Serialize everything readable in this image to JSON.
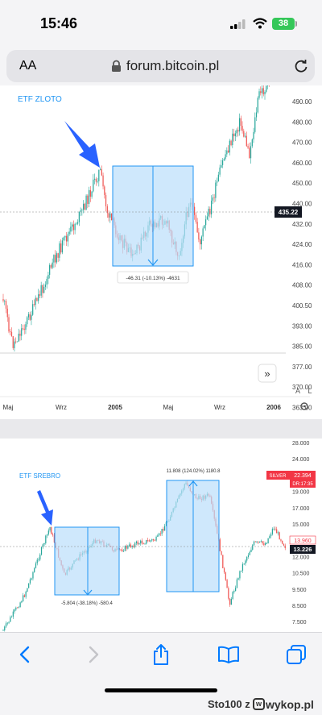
{
  "status_bar": {
    "time": "15:46",
    "battery": "38"
  },
  "browser": {
    "text_size_label": "AA",
    "url": "forum.bitcoin.pl"
  },
  "chart1": {
    "label": "ETF ZLOTO",
    "price_ticks": [
      "490.00",
      "480.00",
      "470.00",
      "460.00",
      "450.00",
      "440.00",
      "432.00",
      "424.00",
      "416.00",
      "408.00",
      "400.50",
      "393.00",
      "385.00",
      "377.00",
      "370.00",
      "363.00"
    ],
    "current_price": "435.22",
    "measure_text": "-46.31 (-10.13%) -4631",
    "time_ticks": [
      "Maj",
      "Wrz",
      "2005",
      "Maj",
      "Wrz",
      "2006"
    ],
    "auto_label": "A",
    "log_label": "L",
    "scroll_btn": "»"
  },
  "chart2": {
    "label": "ETF SREBRO",
    "price_ticks": [
      "28.000",
      "24.000",
      "21.000",
      "19.000",
      "17.000",
      "15.000",
      "13.000",
      "12.000",
      "10.500",
      "9.500",
      "8.500",
      "7.500"
    ],
    "symbol_tag": "SILVER",
    "tag_price": "22.394",
    "tag_countdown": "DR:17:35",
    "line_price": "13.960",
    "current_price": "13.226",
    "measure_down": "-5.804 (-38.18%) -580.4",
    "measure_up": "11.808 (124.02%) 1180.8"
  },
  "watermark": {
    "user": "Sto100",
    "sep": "z",
    "site": "wykop.pl"
  },
  "colors": {
    "up": "#26a69a",
    "down": "#ef5350",
    "annotation": "#2962ff",
    "measure_fill": "#bbdefb",
    "price_tag": "#131722",
    "silver_tag": "#f23645",
    "ios_blue": "#007aff"
  }
}
